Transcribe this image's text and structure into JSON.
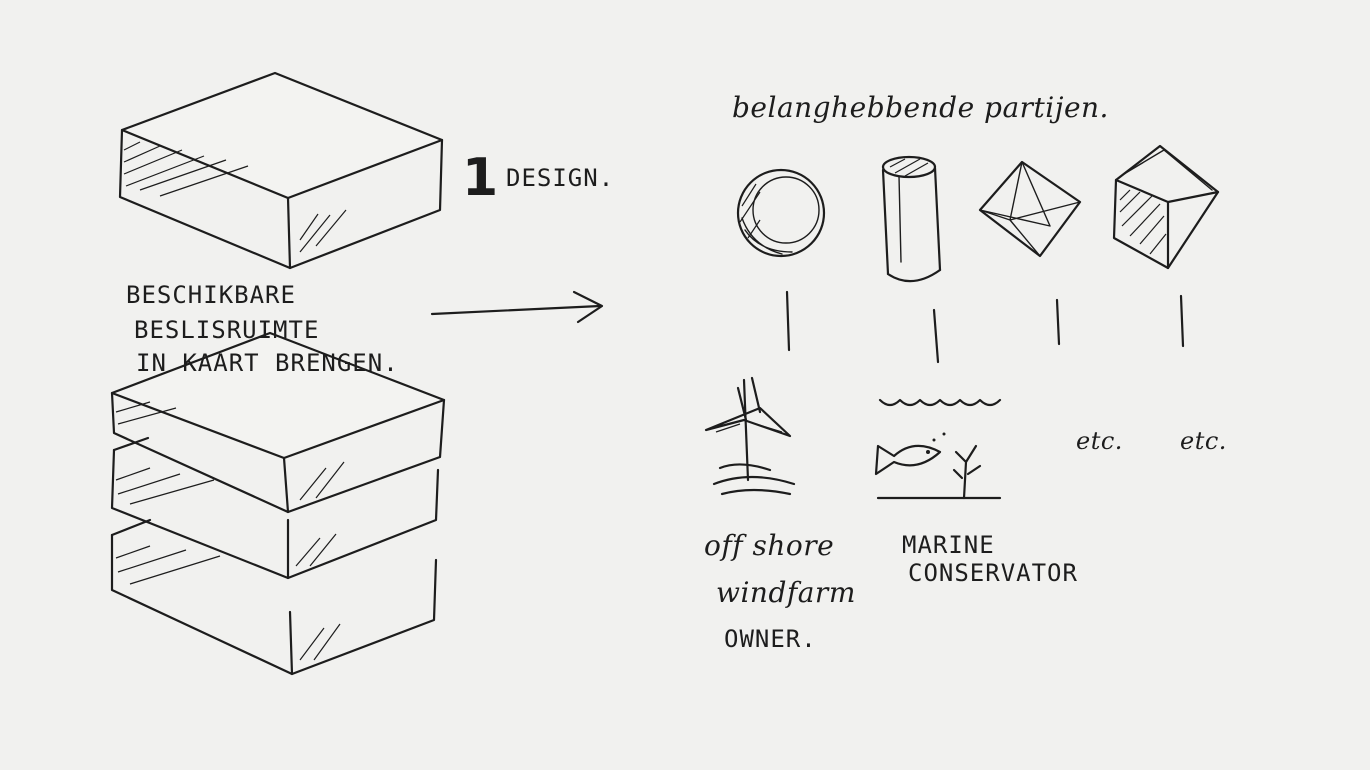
{
  "design_label": "DESIGN.",
  "step_number": "1",
  "left_caption": [
    "BESCHIKBARE",
    "BESLISRUIMTE",
    "IN KAART BRENGEN."
  ],
  "right_title": "belanghebbende partijen.",
  "parties": [
    {
      "symbol": "circle-symbol",
      "caption": [
        "off shore",
        "windfarm",
        "OWNER."
      ]
    },
    {
      "symbol": "cylinder-symbol",
      "caption": [
        "MARINE",
        "CONSERVATOR"
      ]
    },
    {
      "symbol": "octahedron-symbol",
      "caption": [
        "etc."
      ]
    },
    {
      "symbol": "cube-symbol",
      "caption": [
        "etc."
      ]
    }
  ],
  "colors": {
    "ink": "#1d1d1d",
    "paper": "#f1f1ef"
  }
}
